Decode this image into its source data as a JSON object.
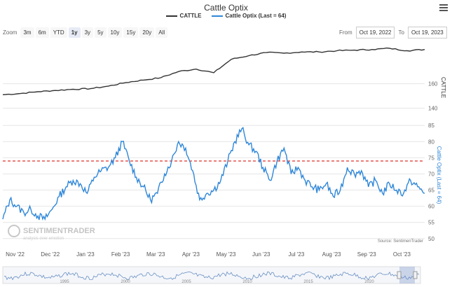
{
  "chart_title": "Cattle Optix",
  "legend": [
    {
      "label": "CATTLE",
      "color": "#333333"
    },
    {
      "label": "Cattle Optix (Last = 64)",
      "color": "#2f87d8"
    }
  ],
  "zoom": {
    "label": "Zoom",
    "buttons": [
      "3m",
      "6m",
      "YTD",
      "1y",
      "3y",
      "5y",
      "10y",
      "15y",
      "20y",
      "All"
    ],
    "selected": "1y"
  },
  "range": {
    "from_label": "From",
    "from": "Oct 19, 2022",
    "to_label": "To",
    "to": "Oct 19, 2023"
  },
  "credits": "Source: SentimenTrader",
  "watermark": {
    "main": "SENTIMENTRADER",
    "sub": "analysis over emotion"
  },
  "colors": {
    "price": "#333333",
    "optix": "#2f87d8",
    "threshold": "#e0302a",
    "navigator": "#6a8fc2"
  },
  "chart_data": [
    {
      "type": "line",
      "name": "price-panel",
      "ylabel": "CATTLE",
      "yticks": [
        140,
        160
      ],
      "ylim": [
        134,
        193
      ],
      "grid": true,
      "series": [
        {
          "name": "CATTLE",
          "x": [
            0.0,
            0.5,
            1.0,
            1.5,
            2.0,
            2.5,
            3.0,
            3.5,
            4.0,
            4.5,
            5.0,
            5.5,
            6.0,
            6.5,
            7.0,
            7.5,
            8.0,
            8.5,
            9.0,
            9.5,
            10.0,
            10.5,
            11.0,
            11.5,
            12.0
          ],
          "y": [
            151,
            152,
            153.5,
            154.5,
            155.5,
            156,
            158,
            161,
            163,
            165,
            170,
            172,
            169,
            180,
            183,
            185.5,
            185,
            186,
            186,
            187,
            187.5,
            188,
            189,
            187,
            188
          ]
        }
      ]
    },
    {
      "type": "line",
      "name": "optix-panel",
      "ylabel": "Cattle Optix (Last = 64)",
      "xticks": [
        "Nov '22",
        "Dec '22",
        "Jan '23",
        "Feb '23",
        "Mar '23",
        "Apr '23",
        "May '23",
        "Jun '23",
        "Jul '23",
        "Aug '23",
        "Sep '23",
        "Oct '23"
      ],
      "yticks": [
        50,
        55,
        60,
        65,
        70,
        75,
        80,
        85
      ],
      "ylim": [
        48,
        87
      ],
      "grid": true,
      "threshold": 74,
      "series": [
        {
          "name": "Cattle Optix",
          "x": [
            0.0,
            0.2,
            0.4,
            0.6,
            0.8,
            1.0,
            1.2,
            1.4,
            1.6,
            1.8,
            2.0,
            2.2,
            2.4,
            2.6,
            2.8,
            3.0,
            3.2,
            3.4,
            3.6,
            3.8,
            4.0,
            4.2,
            4.4,
            4.6,
            4.8,
            5.0,
            5.2,
            5.4,
            5.6,
            5.8,
            6.0,
            6.2,
            6.4,
            6.6,
            6.8,
            7.0,
            7.2,
            7.4,
            7.6,
            7.8,
            8.0,
            8.2,
            8.4,
            8.6,
            8.8,
            9.0,
            9.2,
            9.4,
            9.6,
            9.8,
            10.0,
            10.2,
            10.4,
            10.6,
            10.8,
            11.0,
            11.2,
            11.4,
            11.6,
            11.8,
            12.0
          ],
          "y": [
            56,
            62,
            60,
            58,
            59,
            57,
            56,
            59,
            63,
            66,
            68,
            67,
            64,
            69,
            71,
            72,
            75,
            80,
            74,
            69,
            66,
            62,
            64,
            70,
            74,
            80,
            78,
            71,
            62,
            64,
            65,
            68,
            74,
            80,
            84,
            79,
            77,
            72,
            68,
            74,
            78,
            70,
            72,
            68,
            66,
            65,
            67,
            63,
            65,
            72,
            70,
            71,
            66,
            68,
            64,
            67,
            65,
            64,
            68,
            66,
            64
          ]
        }
      ]
    }
  ],
  "navigator": {
    "year_labels": [
      "1995",
      "2000",
      "2005",
      "2010",
      "2015",
      "2020"
    ]
  }
}
